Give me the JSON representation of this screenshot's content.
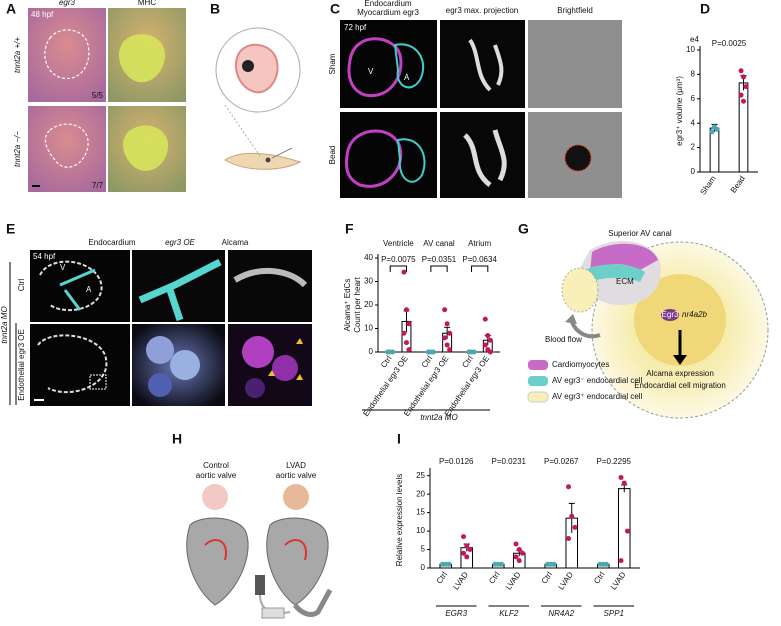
{
  "panels": {
    "A": {
      "label": "A",
      "time": "48 hpf",
      "columns": [
        "egr3",
        "MHC"
      ],
      "rows": [
        "tnnt2a +/+",
        "tnnt2a −/−"
      ],
      "counts": [
        "5/5",
        "7/7"
      ]
    },
    "B": {
      "label": "B"
    },
    "C": {
      "label": "C",
      "legend": [
        "Endocardium",
        "Myocardium egr3"
      ],
      "columns": [
        "egr3 max. projection",
        "Brightfield"
      ],
      "time": "72 hpf",
      "rows": [
        "Sham",
        "Bead"
      ],
      "chambers": [
        "V",
        "A"
      ]
    },
    "E": {
      "label": "E",
      "columns": [
        "Endocardium",
        "egr3 OE",
        "Alcama"
      ],
      "time": "54 hpf",
      "rows": [
        "Ctrl",
        "Endothelial egr3 OE"
      ],
      "group": "tnnt2a MO",
      "chambers": [
        "V",
        "A"
      ]
    },
    "G": {
      "label": "G",
      "region": "Superior AV canal",
      "ecm": "ECM",
      "flow": "Blood flow",
      "gene": "Egr3",
      "target": "nr4a2b",
      "outcomes": [
        "Alcama expression",
        "Endocardial cell migration"
      ],
      "legend": [
        "Cardiomyocytes",
        "AV egr3⁻ endocardial cell",
        "AV egr3⁺ endocardial cell"
      ]
    },
    "H": {
      "label": "H",
      "control": [
        "Control",
        "aortic valve"
      ],
      "lvad": [
        "LVAD",
        "aortic valve"
      ]
    }
  },
  "chart_data": [
    {
      "type": "bar",
      "panel_label": "D",
      "y_exponent": "e4",
      "ylabel": "egr3⁺ volume (µm³)",
      "annotation": "P=0.0025",
      "categories": [
        "Sham",
        "Bead"
      ],
      "values": [
        3.6,
        7.3
      ],
      "errors": [
        0.3,
        0.6
      ],
      "points": [
        [
          3.3,
          3.7,
          3.5
        ],
        [
          8.3,
          7.8,
          7.0,
          6.3,
          5.8
        ]
      ],
      "colors": [
        "#4aa8b0",
        "#c2185b"
      ],
      "ylim": [
        0,
        10
      ],
      "yticks": [
        0,
        2,
        4,
        6,
        8,
        10
      ]
    },
    {
      "type": "bar",
      "panel_label": "F",
      "ylabel": [
        "Alcama⁺ EdCs",
        "Count per heart"
      ],
      "xlabel": "tnnt2a MO",
      "groups": [
        "Ventricle",
        "AV canal",
        "Atrium"
      ],
      "annotations": [
        "P=0.0075",
        "P=0.0351",
        "P=0.0634"
      ],
      "series": [
        {
          "name": "Ctrl",
          "color": "#4aa8b0",
          "values": [
            0,
            0,
            0
          ],
          "errors": [
            0,
            0,
            0
          ],
          "points": [
            [
              0,
              0,
              0,
              0
            ],
            [
              0,
              0,
              0,
              0
            ],
            [
              0,
              0,
              0,
              0
            ]
          ]
        },
        {
          "name": "Endothelial egr3 OE",
          "color": "#c2185b",
          "values": [
            13,
            8,
            5
          ],
          "errors": [
            4.5,
            2.5,
            2
          ],
          "points": [
            [
              34,
              18,
              12,
              8,
              4,
              1
            ],
            [
              18,
              12,
              8,
              6,
              3,
              1
            ],
            [
              14,
              7,
              5,
              3,
              1,
              0
            ]
          ]
        }
      ],
      "ylim": [
        0,
        40
      ],
      "yticks": [
        0,
        10,
        20,
        30,
        40
      ]
    },
    {
      "type": "bar",
      "panel_label": "I",
      "ylabel": "Relative expression levels",
      "groups": [
        "EGR3",
        "KLF2",
        "NR4A2",
        "SPP1"
      ],
      "annotations": [
        "P=0.0126",
        "P=0.0231",
        "P=0.0267",
        "P=0.2295"
      ],
      "series": [
        {
          "name": "Ctrl",
          "color": "#4aa8b0",
          "values": [
            1,
            1,
            1,
            1
          ],
          "errors": [
            0,
            0,
            0,
            0
          ],
          "points": [
            [
              1,
              1,
              1
            ],
            [
              1,
              1,
              1
            ],
            [
              1,
              1,
              1
            ],
            [
              1,
              1,
              1
            ]
          ]
        },
        {
          "name": "LVAD",
          "color": "#c2185b",
          "values": [
            5.5,
            4,
            13.5,
            21.5
          ],
          "errors": [
            1,
            0.8,
            4,
            1
          ],
          "points": [
            [
              8.5,
              6,
              5,
              4,
              3
            ],
            [
              6.5,
              5,
              4,
              3,
              2
            ],
            [
              22,
              14,
              11,
              8
            ],
            [
              24.5,
              23,
              10,
              2
            ]
          ]
        }
      ],
      "ylim": [
        0,
        26
      ],
      "yticks": [
        0,
        5,
        10,
        15,
        20,
        25
      ]
    }
  ]
}
